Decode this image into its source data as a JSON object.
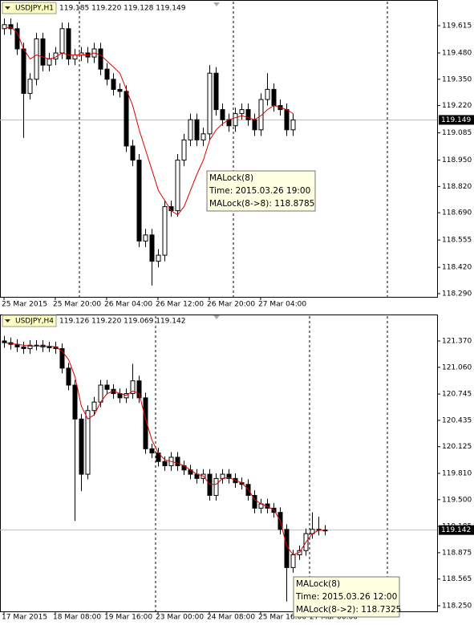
{
  "chart_data": [
    {
      "type": "candlestick",
      "symbol": "USDJPY,H1",
      "quote": "119.185 119.220 119.128 119.149",
      "ylim": [
        118.274,
        119.734
      ],
      "yticks": [
        119.615,
        {
          "value": 119.48,
          "label": "119.480"
        },
        {
          "value": 119.35,
          "label": "119.350"
        },
        {
          "value": 119.22,
          "label": "119.220"
        },
        119.085,
        {
          "value": 118.95,
          "label": "118.950"
        },
        {
          "value": 118.82,
          "label": "118.820"
        },
        {
          "value": 118.69,
          "label": "118.690"
        },
        118.555,
        {
          "value": 118.42,
          "label": "118.420"
        },
        {
          "value": 118.29,
          "label": "118.290"
        }
      ],
      "categories": [
        "25 Mar 2015",
        null,
        null,
        null,
        null,
        null,
        null,
        null,
        "25 Mar 20:00",
        null,
        null,
        null,
        null,
        null,
        null,
        null,
        "26 Mar 04:00",
        null,
        null,
        null,
        null,
        null,
        null,
        null,
        "26 Mar 12:00",
        null,
        null,
        null,
        null,
        null,
        null,
        null,
        "26 Mar 20:00",
        null,
        null,
        null,
        null,
        null,
        null,
        null,
        "27 Mar 04:00",
        null,
        null,
        null,
        null,
        null
      ],
      "open": [
        119.6,
        119.62,
        119.6,
        119.5,
        119.28,
        119.35,
        119.55,
        119.42,
        119.45,
        119.48,
        119.6,
        119.45,
        119.47,
        119.48,
        119.46,
        119.5,
        119.4,
        119.35,
        119.3,
        119.29,
        119.02,
        118.95,
        118.55,
        118.58,
        118.45,
        118.48,
        118.72,
        118.7,
        118.95,
        119.05,
        119.15,
        119.05,
        119.08,
        119.38,
        119.2,
        119.15,
        119.12,
        119.18,
        119.2,
        119.15,
        119.1,
        119.25,
        119.3,
        119.22,
        119.2,
        119.1
      ],
      "high": [
        119.65,
        119.65,
        119.63,
        119.53,
        119.38,
        119.58,
        119.58,
        119.48,
        119.51,
        119.63,
        119.63,
        119.5,
        119.51,
        119.51,
        119.53,
        119.53,
        119.43,
        119.38,
        119.33,
        119.32,
        119.05,
        118.98,
        118.61,
        118.61,
        118.51,
        118.75,
        118.75,
        118.98,
        119.08,
        119.18,
        119.18,
        119.11,
        119.42,
        119.41,
        119.23,
        119.18,
        119.21,
        119.23,
        119.23,
        119.18,
        119.28,
        119.38,
        119.33,
        119.25,
        119.23,
        119.18
      ],
      "low": [
        119.57,
        119.57,
        119.47,
        119.06,
        119.25,
        119.32,
        119.39,
        119.39,
        119.42,
        119.45,
        119.42,
        119.42,
        119.44,
        119.43,
        119.43,
        119.37,
        119.32,
        119.27,
        119.26,
        118.99,
        118.92,
        118.52,
        118.52,
        118.33,
        118.42,
        118.45,
        118.67,
        118.67,
        118.92,
        119.02,
        119.02,
        119.02,
        119.05,
        119.17,
        119.12,
        119.09,
        119.09,
        119.15,
        119.12,
        119.07,
        119.07,
        119.22,
        119.19,
        119.17,
        119.07,
        119.07
      ],
      "close": [
        119.62,
        119.6,
        119.5,
        119.28,
        119.35,
        119.55,
        119.42,
        119.45,
        119.48,
        119.6,
        119.45,
        119.47,
        119.48,
        119.46,
        119.5,
        119.4,
        119.35,
        119.3,
        119.29,
        119.02,
        118.95,
        118.55,
        118.58,
        118.45,
        118.48,
        118.72,
        118.7,
        118.95,
        119.05,
        119.15,
        119.05,
        119.08,
        119.38,
        119.2,
        119.15,
        119.12,
        119.18,
        119.2,
        119.15,
        119.1,
        119.25,
        119.3,
        119.22,
        119.2,
        119.1,
        119.149
      ],
      "ma": {
        "color": "#e00000",
        "values": [
          119.6,
          119.61,
          119.58,
          119.5,
          119.45,
          119.47,
          119.46,
          119.45,
          119.46,
          119.48,
          119.47,
          119.47,
          119.47,
          119.47,
          119.48,
          119.47,
          119.44,
          119.41,
          119.38,
          119.3,
          119.22,
          119.1,
          119.0,
          118.9,
          118.8,
          118.75,
          118.7,
          118.68,
          118.72,
          118.8,
          118.88,
          118.95,
          119.05,
          119.1,
          119.13,
          119.15,
          119.16,
          119.17,
          119.16,
          119.15,
          119.17,
          119.2,
          119.22,
          119.21,
          119.2,
          119.18
        ]
      },
      "last_price": {
        "value": 119.149,
        "label": "119.149"
      },
      "tooltip": [
        "MALock(8)",
        "Time: 2015.03.26 19:00",
        "MALock(8->8): 118.8785"
      ]
    },
    {
      "type": "candlestick",
      "symbol": "USDJPY,H4",
      "quote": "119.126 119.220 119.069 119.142",
      "ylim": [
        118.184,
        121.663
      ],
      "yticks": [
        {
          "value": 121.37,
          "label": "121.370"
        },
        {
          "value": 121.06,
          "label": "121.060"
        },
        120.745,
        120.435,
        120.125,
        {
          "value": 119.81,
          "label": "119.810"
        },
        {
          "value": 119.5,
          "label": "119.500"
        },
        119.185,
        118.875,
        118.565,
        {
          "value": 118.25,
          "label": "118.250"
        }
      ],
      "categories": [
        "17 Mar 2015",
        null,
        null,
        null,
        null,
        null,
        null,
        null,
        "18 Mar 08:00",
        null,
        null,
        null,
        null,
        null,
        null,
        null,
        "19 Mar 16:00",
        null,
        null,
        null,
        null,
        null,
        null,
        null,
        "23 Mar 00:00",
        null,
        null,
        null,
        null,
        null,
        null,
        null,
        "24 Mar 08:00",
        null,
        null,
        null,
        null,
        null,
        null,
        null,
        "25 Mar 16:00",
        null,
        null,
        null,
        null,
        null,
        null,
        null,
        "27 Mar 00:00",
        null,
        null
      ],
      "open": [
        121.37,
        121.35,
        121.33,
        121.3,
        121.28,
        121.32,
        121.32,
        121.3,
        121.3,
        121.28,
        121.05,
        120.85,
        120.45,
        119.8,
        120.55,
        120.65,
        120.85,
        120.8,
        120.75,
        120.7,
        120.75,
        120.9,
        120.7,
        120.1,
        120.05,
        119.95,
        119.9,
        120.0,
        119.9,
        119.85,
        119.8,
        119.75,
        119.8,
        119.55,
        119.75,
        119.8,
        119.75,
        119.7,
        119.68,
        119.55,
        119.4,
        119.45,
        119.4,
        119.35,
        119.15,
        118.7,
        118.85,
        118.9,
        119.1,
        119.15,
        119.14
      ],
      "high": [
        121.43,
        121.41,
        121.39,
        121.36,
        121.38,
        121.38,
        121.38,
        121.36,
        121.36,
        121.34,
        121.11,
        120.91,
        120.51,
        120.61,
        120.71,
        120.91,
        120.91,
        120.86,
        120.81,
        120.81,
        121.1,
        120.96,
        120.76,
        120.16,
        120.11,
        120.01,
        120.06,
        120.06,
        119.96,
        119.91,
        119.86,
        119.86,
        119.86,
        119.81,
        119.86,
        119.86,
        119.81,
        119.76,
        119.74,
        119.61,
        119.51,
        119.51,
        119.46,
        119.41,
        119.21,
        118.91,
        118.96,
        119.16,
        119.35,
        119.3,
        119.2
      ],
      "low": [
        121.29,
        121.27,
        121.24,
        121.22,
        121.22,
        121.26,
        121.24,
        121.24,
        121.22,
        120.99,
        120.79,
        119.25,
        119.6,
        119.74,
        120.49,
        120.59,
        120.74,
        120.69,
        120.64,
        120.64,
        120.69,
        120.64,
        120.04,
        119.99,
        119.89,
        119.84,
        119.84,
        119.84,
        119.79,
        119.74,
        119.69,
        119.69,
        119.49,
        119.49,
        119.69,
        119.69,
        119.64,
        119.62,
        119.49,
        119.34,
        119.34,
        119.34,
        119.29,
        119.09,
        118.3,
        118.64,
        118.79,
        118.84,
        119.04,
        119.08,
        119.08
      ],
      "close": [
        121.35,
        121.33,
        121.3,
        121.28,
        121.32,
        121.32,
        121.3,
        121.3,
        121.28,
        121.05,
        120.85,
        120.45,
        119.8,
        120.55,
        120.65,
        120.85,
        120.8,
        120.75,
        120.7,
        120.75,
        120.9,
        120.7,
        120.1,
        120.05,
        119.95,
        119.9,
        120.0,
        119.9,
        119.85,
        119.8,
        119.75,
        119.8,
        119.55,
        119.75,
        119.8,
        119.75,
        119.7,
        119.68,
        119.55,
        119.4,
        119.45,
        119.4,
        119.35,
        119.15,
        118.7,
        118.85,
        118.9,
        119.1,
        119.15,
        119.14,
        119.142
      ],
      "ma": {
        "color": "#e00000",
        "values": [
          121.35,
          121.34,
          121.33,
          121.32,
          121.31,
          121.31,
          121.31,
          121.31,
          121.3,
          121.25,
          121.15,
          120.95,
          120.6,
          120.45,
          120.5,
          120.65,
          120.75,
          120.78,
          120.75,
          120.73,
          120.78,
          120.75,
          120.45,
          120.2,
          120.05,
          119.97,
          119.95,
          119.93,
          119.9,
          119.85,
          119.8,
          119.78,
          119.68,
          119.68,
          119.75,
          119.76,
          119.73,
          119.7,
          119.62,
          119.5,
          119.45,
          119.42,
          119.38,
          119.25,
          118.95,
          118.85,
          118.88,
          119.0,
          119.1,
          119.14,
          119.14
        ]
      },
      "last_price": {
        "value": 119.142,
        "label": "119.142"
      },
      "tooltip": [
        "MALock(8)",
        "Time: 2015.03.26 12:00",
        "MALock(8->2): 118.7325"
      ]
    }
  ]
}
